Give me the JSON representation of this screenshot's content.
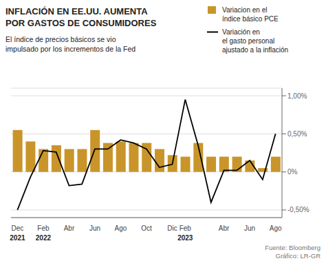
{
  "chart_data": {
    "type": "bar",
    "title": "INFLACIÓN EN EE.UU. AUMENTA\nPOR GASTOS DE CONSUMIDORES",
    "subtitle": "El índice de precios básicos se vio\nimpulsado por los incrementos de la Fed",
    "source": "Fuente: Bloomberg\nGráfico: LR-GR",
    "categories": [
      "Dec",
      null,
      "Feb",
      null,
      "Abr",
      null,
      "Jun",
      null,
      "Ago",
      null,
      "Oct",
      null,
      "Dic",
      "Feb",
      null,
      null,
      "Abr",
      null,
      "Jun",
      null,
      "Ago"
    ],
    "series": [
      {
        "name": "Variacion en el\níndice básico PCE",
        "type": "bar",
        "color": "#C9952A",
        "values": [
          0.55,
          0.4,
          0.3,
          0.35,
          0.3,
          0.3,
          0.55,
          0.38,
          0.4,
          0.38,
          0.38,
          0.3,
          0.22,
          0.2,
          0.38,
          0.2,
          0.2,
          0.2,
          0.15,
          0.05,
          0.2
        ]
      },
      {
        "name": "Variación en\nel gasto personal\najustado a la inflación",
        "type": "line",
        "color": "#000000",
        "values": [
          -0.5,
          -0.07,
          0.28,
          0.26,
          -0.18,
          -0.16,
          0.3,
          0.3,
          0.42,
          0.38,
          0.3,
          0.06,
          0.1,
          0.95,
          0.35,
          -0.4,
          0.02,
          0.02,
          0.15,
          -0.1,
          0.5
        ]
      }
    ],
    "annotations": [
      {
        "text": "2021",
        "category_index": 0
      },
      {
        "text": "2022",
        "category_index": 2
      },
      {
        "text": "2023",
        "category_index": 13
      }
    ],
    "ylim": [
      -0.6,
      1.1
    ],
    "yticks": [
      {
        "value": -0.5,
        "label": "-0,50%"
      },
      {
        "value": 0.0,
        "label": "0%"
      },
      {
        "value": 0.5,
        "label": "0,50%"
      },
      {
        "value": 1.0,
        "label": "1,00%"
      }
    ],
    "grid": true
  }
}
